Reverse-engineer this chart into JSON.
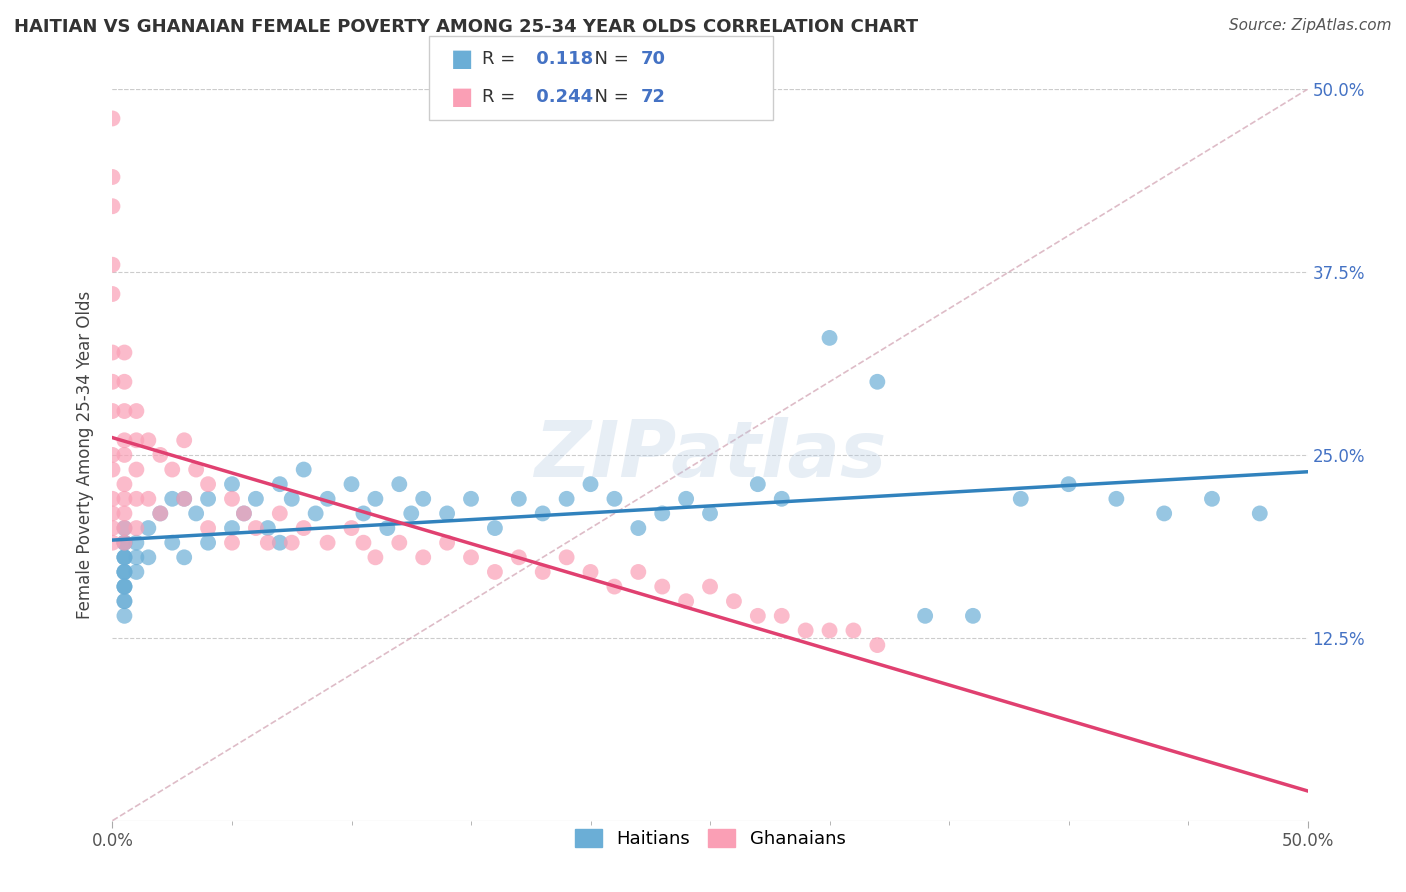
{
  "title": "HAITIAN VS GHANAIAN FEMALE POVERTY AMONG 25-34 YEAR OLDS CORRELATION CHART",
  "source": "Source: ZipAtlas.com",
  "ylabel": "Female Poverty Among 25-34 Year Olds",
  "xlim": [
    0.0,
    0.5
  ],
  "ylim": [
    0.0,
    0.5
  ],
  "xtick_labels_ends": [
    "0.0%",
    "50.0%"
  ],
  "xtick_vals_ends": [
    0.0,
    0.5
  ],
  "ytick_labels": [
    "12.5%",
    "25.0%",
    "37.5%",
    "50.0%"
  ],
  "ytick_vals": [
    0.125,
    0.25,
    0.375,
    0.5
  ],
  "watermark": "ZIPatlas",
  "haitian_color": "#6baed6",
  "ghanaian_color": "#fa9fb5",
  "haitian_trend_color": "#3182bd",
  "ghanaian_trend_color": "#e04070",
  "haitian_r": 0.118,
  "haitian_n": 70,
  "ghanaian_r": 0.244,
  "ghanaian_n": 72,
  "haitians_label": "Haitians",
  "ghanaians_label": "Ghanaians",
  "haitian_x": [
    0.005,
    0.005,
    0.005,
    0.005,
    0.005,
    0.005,
    0.005,
    0.005,
    0.005,
    0.005,
    0.005,
    0.005,
    0.005,
    0.005,
    0.005,
    0.01,
    0.01,
    0.01,
    0.015,
    0.015,
    0.02,
    0.025,
    0.025,
    0.03,
    0.03,
    0.035,
    0.04,
    0.04,
    0.05,
    0.05,
    0.055,
    0.06,
    0.065,
    0.07,
    0.07,
    0.075,
    0.08,
    0.085,
    0.09,
    0.1,
    0.105,
    0.11,
    0.115,
    0.12,
    0.125,
    0.13,
    0.14,
    0.15,
    0.16,
    0.17,
    0.18,
    0.19,
    0.2,
    0.21,
    0.22,
    0.23,
    0.24,
    0.25,
    0.27,
    0.28,
    0.3,
    0.32,
    0.34,
    0.36,
    0.38,
    0.4,
    0.42,
    0.44,
    0.46,
    0.48
  ],
  "haitian_y": [
    0.2,
    0.19,
    0.19,
    0.18,
    0.18,
    0.18,
    0.17,
    0.17,
    0.17,
    0.16,
    0.16,
    0.16,
    0.15,
    0.15,
    0.14,
    0.19,
    0.18,
    0.17,
    0.2,
    0.18,
    0.21,
    0.22,
    0.19,
    0.22,
    0.18,
    0.21,
    0.22,
    0.19,
    0.23,
    0.2,
    0.21,
    0.22,
    0.2,
    0.23,
    0.19,
    0.22,
    0.24,
    0.21,
    0.22,
    0.23,
    0.21,
    0.22,
    0.2,
    0.23,
    0.21,
    0.22,
    0.21,
    0.22,
    0.2,
    0.22,
    0.21,
    0.22,
    0.23,
    0.22,
    0.2,
    0.21,
    0.22,
    0.21,
    0.23,
    0.22,
    0.33,
    0.3,
    0.14,
    0.14,
    0.22,
    0.23,
    0.22,
    0.21,
    0.22,
    0.21
  ],
  "ghanaian_x": [
    0.0,
    0.0,
    0.0,
    0.0,
    0.0,
    0.0,
    0.0,
    0.0,
    0.0,
    0.0,
    0.0,
    0.0,
    0.0,
    0.0,
    0.005,
    0.005,
    0.005,
    0.005,
    0.005,
    0.005,
    0.005,
    0.005,
    0.005,
    0.005,
    0.01,
    0.01,
    0.01,
    0.01,
    0.01,
    0.015,
    0.015,
    0.02,
    0.02,
    0.025,
    0.03,
    0.03,
    0.035,
    0.04,
    0.04,
    0.05,
    0.05,
    0.055,
    0.06,
    0.065,
    0.07,
    0.075,
    0.08,
    0.09,
    0.1,
    0.105,
    0.11,
    0.12,
    0.13,
    0.14,
    0.15,
    0.16,
    0.17,
    0.18,
    0.19,
    0.2,
    0.21,
    0.22,
    0.23,
    0.24,
    0.25,
    0.26,
    0.27,
    0.28,
    0.29,
    0.3,
    0.31,
    0.32
  ],
  "ghanaian_y": [
    0.48,
    0.44,
    0.42,
    0.38,
    0.36,
    0.32,
    0.3,
    0.28,
    0.25,
    0.24,
    0.22,
    0.21,
    0.2,
    0.19,
    0.32,
    0.3,
    0.28,
    0.26,
    0.25,
    0.23,
    0.22,
    0.21,
    0.2,
    0.19,
    0.28,
    0.26,
    0.24,
    0.22,
    0.2,
    0.26,
    0.22,
    0.25,
    0.21,
    0.24,
    0.26,
    0.22,
    0.24,
    0.23,
    0.2,
    0.22,
    0.19,
    0.21,
    0.2,
    0.19,
    0.21,
    0.19,
    0.2,
    0.19,
    0.2,
    0.19,
    0.18,
    0.19,
    0.18,
    0.19,
    0.18,
    0.17,
    0.18,
    0.17,
    0.18,
    0.17,
    0.16,
    0.17,
    0.16,
    0.15,
    0.16,
    0.15,
    0.14,
    0.14,
    0.13,
    0.13,
    0.13,
    0.12
  ]
}
